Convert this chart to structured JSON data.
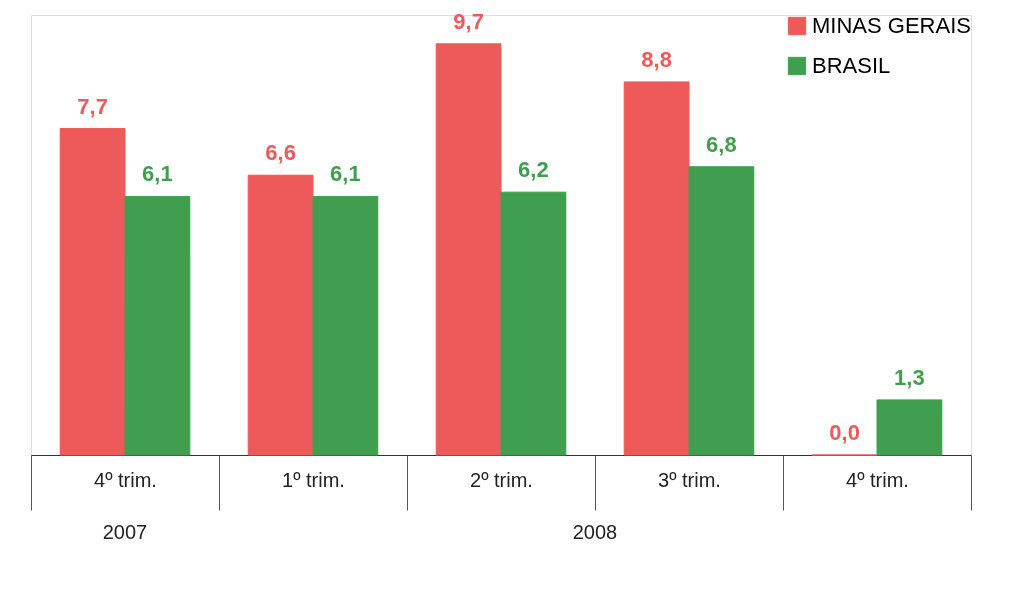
{
  "chart_data": {
    "type": "bar",
    "categories": [
      "4º trim.",
      "1º trim.",
      "2º trim.",
      "3º trim.",
      "4º trim."
    ],
    "series": [
      {
        "name": "MINAS GERAIS",
        "color": "#ee5a5a",
        "values": [
          7.7,
          6.6,
          9.7,
          8.8,
          0.0
        ],
        "value_labels": [
          "7,7",
          "6,6",
          "9,7",
          "8,8",
          "0,0"
        ]
      },
      {
        "name": "BRASIL",
        "color": "#3f9f4f",
        "values": [
          6.1,
          6.1,
          6.2,
          6.8,
          1.3
        ],
        "value_labels": [
          "6,1",
          "6,1",
          "6,2",
          "6,8",
          "1,3"
        ]
      }
    ],
    "annotations": [
      "2007",
      "2008"
    ],
    "legend": "top right",
    "grid": false
  }
}
